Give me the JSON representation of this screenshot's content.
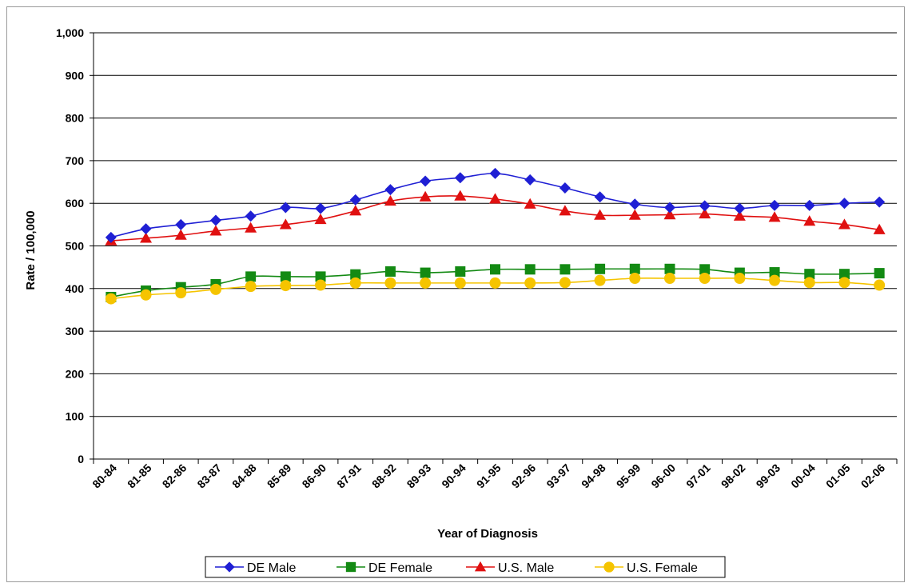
{
  "chart_data": {
    "type": "line",
    "title": "",
    "xlabel": "Year of Diagnosis",
    "ylabel": "Rate / 100,000",
    "ylim": [
      0,
      1000
    ],
    "yticks": [
      0,
      100,
      200,
      300,
      400,
      500,
      600,
      700,
      800,
      900,
      1000
    ],
    "ytick_labels": [
      "0",
      "100",
      "200",
      "300",
      "400",
      "500",
      "600",
      "700",
      "800",
      "900",
      "1,000"
    ],
    "grid": "horizontal",
    "legend_position": "bottom",
    "categories": [
      "80-84",
      "81-85",
      "82-86",
      "83-87",
      "84-88",
      "85-89",
      "86-90",
      "87-91",
      "88-92",
      "89-93",
      "90-94",
      "91-95",
      "92-96",
      "93-97",
      "94-98",
      "95-99",
      "96-00",
      "97-01",
      "98-02",
      "99-03",
      "00-04",
      "01-05",
      "02-06"
    ],
    "series": [
      {
        "name": "DE Male",
        "color": "#1f1fd4",
        "marker": "diamond",
        "values": [
          520,
          540,
          550,
          560,
          570,
          590,
          588,
          608,
          632,
          652,
          660,
          670,
          655,
          636,
          615,
          598,
          590,
          594,
          588,
          595,
          595,
          600,
          603
        ]
      },
      {
        "name": "DE Female",
        "color": "#138a13",
        "marker": "square",
        "values": [
          380,
          395,
          403,
          410,
          428,
          428,
          428,
          433,
          440,
          437,
          440,
          445,
          445,
          445,
          446,
          446,
          446,
          445,
          437,
          438,
          434,
          434,
          436
        ]
      },
      {
        "name": "U.S. Male",
        "color": "#e01010",
        "marker": "triangle",
        "values": [
          512,
          518,
          525,
          535,
          542,
          550,
          562,
          582,
          605,
          615,
          617,
          610,
          598,
          582,
          572,
          572,
          573,
          575,
          570,
          567,
          558,
          550,
          538
        ]
      },
      {
        "name": "U.S. Female",
        "color": "#f5c400",
        "marker": "circle",
        "values": [
          376,
          385,
          390,
          398,
          405,
          407,
          408,
          413,
          413,
          413,
          413,
          413,
          413,
          414,
          419,
          424,
          424,
          424,
          424,
          419,
          414,
          414,
          408
        ]
      }
    ]
  }
}
